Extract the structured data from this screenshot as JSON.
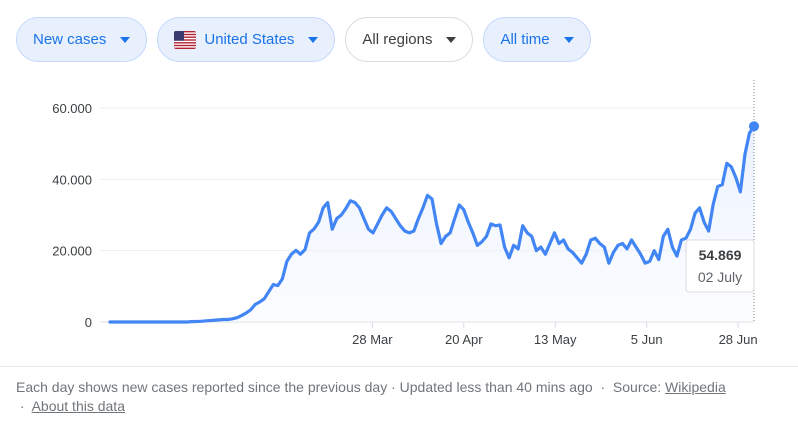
{
  "filters": {
    "metric": "New cases",
    "country": "United States",
    "region": "All regions",
    "period": "All time"
  },
  "colors": {
    "accent": "#1a73e8",
    "line": "#4285f4",
    "chip_bg": "#e8f0fe"
  },
  "footer": {
    "note": "Each day shows new cases reported since the previous day · Updated less than 40 mins ago",
    "sep": "·",
    "source_label": "Source:",
    "source_link": "Wikipedia",
    "about_link": "About this data"
  },
  "chart_data": {
    "type": "area",
    "series": [
      {
        "values": [
          0,
          0,
          0,
          0,
          0,
          0,
          0,
          0,
          0,
          0,
          0,
          0,
          0,
          0,
          0,
          0,
          0,
          0,
          100,
          150,
          200,
          300,
          400,
          500,
          600,
          700,
          700,
          900,
          1200,
          1800,
          2500,
          3400,
          4900,
          5600,
          6500,
          8500,
          10500,
          10200,
          12100,
          17000,
          19000,
          20100,
          19000,
          20300,
          25000,
          26100,
          28000,
          32000,
          33500,
          26000,
          29000,
          30000,
          31800,
          34000,
          33500,
          32000,
          29000,
          26000,
          25000,
          27500,
          30000,
          32000,
          31000,
          29000,
          27000,
          25500,
          25000,
          25500,
          29000,
          32000,
          35500,
          34500,
          27500,
          22000,
          24000,
          25000,
          29000,
          32800,
          31500,
          28000,
          25000,
          21500,
          22500,
          24000,
          27500,
          27000,
          27200,
          21000,
          18000,
          21500,
          20500,
          27000,
          25000,
          24000,
          20000,
          21000,
          19000,
          22000,
          25000,
          22000,
          23000,
          20500,
          19500,
          18000,
          16500,
          19000,
          23000,
          23500,
          22000,
          21000,
          16500,
          19500,
          21500,
          22000,
          20500,
          23000,
          21000,
          19000,
          16500,
          17000,
          20000,
          17500,
          24000,
          26000,
          21000,
          18500,
          23000,
          23500,
          26000,
          30500,
          32000,
          28000,
          25500,
          33000,
          38000,
          38500,
          44500,
          43500,
          40500,
          36500,
          47000,
          53000,
          54869
        ]
      }
    ],
    "x_start": "2020-01-22",
    "x_end": "2020-07-02",
    "xticks": [
      {
        "date": "2020-03-28",
        "label": "28 Mar"
      },
      {
        "date": "2020-04-20",
        "label": "20 Apr"
      },
      {
        "date": "2020-05-13",
        "label": "13 May"
      },
      {
        "date": "2020-06-05",
        "label": "5 Jun"
      },
      {
        "date": "2020-06-28",
        "label": "28 Jun"
      }
    ],
    "yticks": [
      {
        "value": 0,
        "label": "0"
      },
      {
        "value": 20000,
        "label": "20.000"
      },
      {
        "value": 40000,
        "label": "40.000"
      },
      {
        "value": 60000,
        "label": "60.000"
      }
    ],
    "ylim": [
      0,
      60000
    ],
    "grid": true,
    "tooltip": {
      "value_label": "54.869",
      "date_label": "02 July"
    }
  }
}
